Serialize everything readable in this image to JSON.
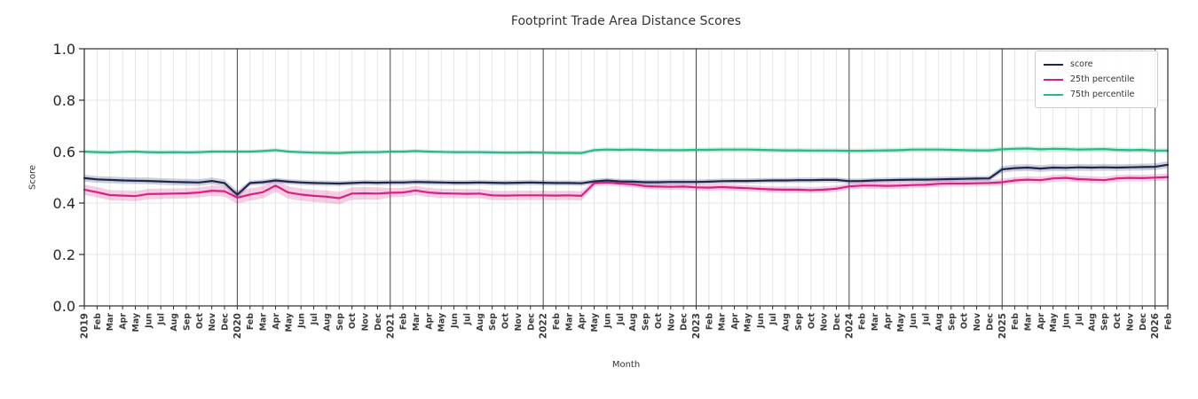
{
  "title": "Footprint Trade Area Distance Scores",
  "axes": {
    "ylabel": "Score",
    "xlabel": "Month"
  },
  "colors": {
    "score": "#1b2653",
    "p25": "#d81f84",
    "p75": "#2bb881",
    "month_grid": "#e4e4e4",
    "year_grid": "#444444",
    "spine": "#2b2b2b",
    "tick_text": "#3b3b3b"
  },
  "chart_data": {
    "type": "line",
    "ylim": [
      0.0,
      1.0
    ],
    "yticks": [
      0.0,
      0.2,
      0.4,
      0.6,
      0.8,
      1.0
    ],
    "ytick_labels": [
      "0.0",
      "0.2",
      "0.4",
      "0.6",
      "0.8",
      "1.0"
    ],
    "grid": true,
    "legend_position": "upper right",
    "x_labels": [
      "2019",
      "Feb",
      "Mar",
      "Apr",
      "May",
      "Jun",
      "Jul",
      "Aug",
      "Sep",
      "Oct",
      "Nov",
      "Dec",
      "2020",
      "Feb",
      "Mar",
      "Apr",
      "May",
      "Jun",
      "Jul",
      "Aug",
      "Sep",
      "Oct",
      "Nov",
      "Dec",
      "2021",
      "Feb",
      "Mar",
      "Apr",
      "May",
      "Jun",
      "Jul",
      "Aug",
      "Sep",
      "Oct",
      "Nov",
      "Dec",
      "2022",
      "Feb",
      "Mar",
      "Apr",
      "May",
      "Jun",
      "Jul",
      "Aug",
      "Sep",
      "Oct",
      "Nov",
      "Dec",
      "2023",
      "Feb",
      "Mar",
      "Apr",
      "May",
      "Jun",
      "Jul",
      "Aug",
      "Sep",
      "Oct",
      "Nov",
      "Dec",
      "2024",
      "Feb",
      "Mar",
      "Apr",
      "May",
      "Jun",
      "Jul",
      "Aug",
      "Sep",
      "Oct",
      "Nov",
      "Dec",
      "2025",
      "Feb",
      "Mar",
      "Apr",
      "May",
      "Jun",
      "Jul",
      "Aug",
      "Sep",
      "Oct",
      "Nov",
      "Dec",
      "2026",
      "Feb"
    ],
    "series": [
      {
        "name": "score",
        "color": "#1b2653",
        "values": [
          0.497,
          0.492,
          0.49,
          0.488,
          0.487,
          0.486,
          0.484,
          0.482,
          0.481,
          0.48,
          0.486,
          0.478,
          0.432,
          0.478,
          0.481,
          0.488,
          0.483,
          0.48,
          0.478,
          0.477,
          0.476,
          0.478,
          0.48,
          0.479,
          0.48,
          0.48,
          0.482,
          0.481,
          0.48,
          0.479,
          0.479,
          0.48,
          0.479,
          0.478,
          0.479,
          0.48,
          0.479,
          0.478,
          0.478,
          0.477,
          0.484,
          0.488,
          0.484,
          0.483,
          0.481,
          0.481,
          0.482,
          0.482,
          0.482,
          0.483,
          0.485,
          0.486,
          0.486,
          0.487,
          0.488,
          0.488,
          0.489,
          0.489,
          0.49,
          0.49,
          0.485,
          0.486,
          0.488,
          0.489,
          0.49,
          0.491,
          0.491,
          0.492,
          0.493,
          0.494,
          0.495,
          0.496,
          0.531,
          0.536,
          0.538,
          0.534,
          0.538,
          0.537,
          0.539,
          0.538,
          0.539,
          0.538,
          0.539,
          0.54,
          0.541,
          0.549
        ],
        "band_segments": [
          [
            0,
            11,
            0.013
          ],
          [
            12,
            12,
            0.016
          ],
          [
            13,
            71,
            0.01
          ],
          [
            72,
            85,
            0.013
          ]
        ]
      },
      {
        "name": "25th percentile",
        "color": "#d81f84",
        "values": [
          0.452,
          0.442,
          0.431,
          0.429,
          0.427,
          0.435,
          0.436,
          0.437,
          0.438,
          0.441,
          0.448,
          0.446,
          0.421,
          0.433,
          0.442,
          0.468,
          0.441,
          0.433,
          0.428,
          0.425,
          0.419,
          0.437,
          0.438,
          0.437,
          0.44,
          0.441,
          0.449,
          0.441,
          0.438,
          0.437,
          0.436,
          0.437,
          0.43,
          0.429,
          0.43,
          0.43,
          0.43,
          0.429,
          0.43,
          0.428,
          0.477,
          0.48,
          0.476,
          0.473,
          0.466,
          0.464,
          0.463,
          0.464,
          0.461,
          0.46,
          0.462,
          0.46,
          0.458,
          0.455,
          0.453,
          0.452,
          0.452,
          0.45,
          0.452,
          0.456,
          0.465,
          0.468,
          0.468,
          0.467,
          0.468,
          0.47,
          0.471,
          0.475,
          0.476,
          0.476,
          0.477,
          0.478,
          0.481,
          0.488,
          0.491,
          0.489,
          0.496,
          0.498,
          0.493,
          0.491,
          0.489,
          0.496,
          0.498,
          0.497,
          0.499,
          0.501
        ],
        "band_segments": [
          [
            0,
            11,
            0.02
          ],
          [
            12,
            23,
            0.024
          ],
          [
            24,
            39,
            0.018
          ],
          [
            40,
            71,
            0.012
          ],
          [
            72,
            85,
            0.013
          ]
        ]
      },
      {
        "name": "75th percentile",
        "color": "#2bb881",
        "values": [
          0.6,
          0.598,
          0.597,
          0.599,
          0.6,
          0.598,
          0.597,
          0.598,
          0.597,
          0.598,
          0.6,
          0.6,
          0.6,
          0.6,
          0.602,
          0.606,
          0.6,
          0.598,
          0.596,
          0.595,
          0.594,
          0.597,
          0.598,
          0.598,
          0.6,
          0.6,
          0.602,
          0.6,
          0.599,
          0.598,
          0.598,
          0.598,
          0.597,
          0.596,
          0.596,
          0.597,
          0.596,
          0.595,
          0.595,
          0.594,
          0.606,
          0.608,
          0.607,
          0.608,
          0.607,
          0.606,
          0.606,
          0.606,
          0.607,
          0.607,
          0.608,
          0.608,
          0.608,
          0.607,
          0.606,
          0.605,
          0.605,
          0.604,
          0.604,
          0.604,
          0.603,
          0.603,
          0.604,
          0.605,
          0.606,
          0.608,
          0.608,
          0.608,
          0.607,
          0.606,
          0.605,
          0.605,
          0.609,
          0.611,
          0.612,
          0.609,
          0.611,
          0.61,
          0.608,
          0.609,
          0.61,
          0.607,
          0.606,
          0.607,
          0.604,
          0.604
        ],
        "band_segments": [
          [
            0,
            47,
            0.008
          ],
          [
            48,
            85,
            0.009
          ]
        ]
      }
    ]
  }
}
